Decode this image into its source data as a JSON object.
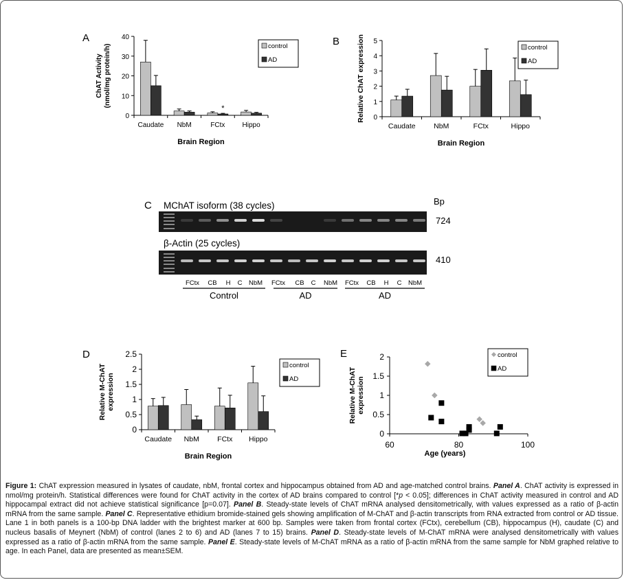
{
  "colors": {
    "control": "#c0c0c0",
    "ad": "#333333",
    "control_scatter": "#a8a8a8",
    "ad_scatter": "#000000",
    "gel_bg": "#1a1a1a",
    "band": "#f2f2f2"
  },
  "chart_data": [
    {
      "panel": "A",
      "type": "bar",
      "categories": [
        "Caudate",
        "NbM",
        "FCtx",
        "Hippo"
      ],
      "series": [
        {
          "name": "control",
          "values": [
            27,
            2.2,
            1.2,
            1.7
          ],
          "errors": [
            11,
            1,
            0.6,
            0.8
          ]
        },
        {
          "name": "AD",
          "values": [
            15,
            1.6,
            0.7,
            1.1
          ],
          "errors": [
            5.2,
            0.6,
            0.3,
            0.4
          ]
        }
      ],
      "ylim": [
        0,
        40
      ],
      "yticks": [
        0,
        10,
        20,
        30,
        40
      ],
      "ylabel_lines": [
        "ChAT Activity",
        "(nmol/mg protein/h)"
      ],
      "xlabel": "Brain Region",
      "annotation": "*",
      "legend": "top-right"
    },
    {
      "panel": "B",
      "type": "bar",
      "categories": [
        "Caudate",
        "NbM",
        "FCtx",
        "Hippo"
      ],
      "series": [
        {
          "name": "control",
          "values": [
            1.1,
            2.7,
            2.0,
            2.35
          ],
          "errors": [
            0.25,
            1.45,
            1.1,
            1.5
          ]
        },
        {
          "name": "AD",
          "values": [
            1.35,
            1.75,
            3.05,
            1.45
          ],
          "errors": [
            0.45,
            0.9,
            1.4,
            0.95
          ]
        }
      ],
      "ylim": [
        0,
        5
      ],
      "yticks": [
        0,
        1,
        2,
        3,
        4,
        5
      ],
      "ylabel_lines": [
        "Relative ChAT expression"
      ],
      "xlabel": "Brain Region",
      "legend": "top-right"
    },
    {
      "panel": "D",
      "type": "bar",
      "categories": [
        "Caudate",
        "NbM",
        "FCtx",
        "Hippo"
      ],
      "series": [
        {
          "name": "control",
          "values": [
            0.78,
            0.83,
            0.78,
            1.55
          ],
          "errors": [
            0.25,
            0.5,
            0.6,
            0.55
          ]
        },
        {
          "name": "AD",
          "values": [
            0.8,
            0.33,
            0.72,
            0.6
          ],
          "errors": [
            0.27,
            0.12,
            0.42,
            0.52
          ]
        }
      ],
      "ylim": [
        0,
        2.5
      ],
      "yticks": [
        "0",
        "0.5",
        "1",
        "1.5",
        "2",
        "2.5"
      ],
      "ylabel_lines": [
        "Relative M-ChAT",
        "expression"
      ],
      "xlabel": "Brain Region",
      "legend": "top-right"
    },
    {
      "panel": "E",
      "type": "scatter",
      "series": [
        {
          "name": "control",
          "points": [
            [
              71,
              1.82
            ],
            [
              73,
              1.0
            ],
            [
              86,
              0.38
            ],
            [
              87,
              0.28
            ]
          ]
        },
        {
          "name": "AD",
          "points": [
            [
              72,
              0.42
            ],
            [
              75,
              0.8
            ],
            [
              75,
              0.32
            ],
            [
              81,
              0.01
            ],
            [
              82,
              0.01
            ],
            [
              83,
              0.1
            ],
            [
              83,
              0.18
            ],
            [
              91,
              0.01
            ],
            [
              92,
              0.18
            ]
          ]
        }
      ],
      "xlim": [
        60,
        100
      ],
      "xticks": [
        60,
        80,
        100
      ],
      "ylim": [
        0,
        2
      ],
      "yticks": [
        "0",
        "0.5",
        "1",
        "1.5",
        "2"
      ],
      "ylabel_lines": [
        "Relative M-ChAT",
        "expression"
      ],
      "xlabel": "Age (years)",
      "legend": "top-right"
    }
  ],
  "panel_c": {
    "letter": "C",
    "gel1_title": "MChAT isoform (38 cycles)",
    "gel2_title": "β-Actin (25 cycles)",
    "bp_label": "Bp",
    "size1": "724",
    "size2": "410",
    "lane_labels": [
      "FCtx",
      "CB",
      "H",
      "C",
      "NbM",
      "FCtx",
      "CB",
      "C",
      "NbM",
      "FCtx",
      "CB",
      "H",
      "C",
      "NbM"
    ],
    "groups": [
      "Control",
      "AD",
      "AD"
    ],
    "gel1_bands": [
      0,
      0.15,
      0.3,
      0.55,
      0.85,
      0.9,
      0.2,
      0,
      0,
      0.15,
      0.4,
      0.5,
      0.5,
      0.5,
      0.45
    ],
    "gel2_bands": [
      0,
      0.75,
      0.8,
      0.8,
      0.85,
      0.85,
      0.8,
      0.75,
      0.8,
      0.85,
      0.8,
      0.85,
      0.85,
      0.8,
      0.8
    ]
  },
  "caption": {
    "fig_label": "Figure 1:",
    "intro": " ChAT expression measured in lysates of caudate, nbM, frontal cortex and hippocampus obtained from AD and age-matched control brains. ",
    "pA_label": "Panel A",
    "pA_text": ". ChAT activity is expressed in nmol/mg protein/h. Statistical differences were found for ChAT activity in the cortex of AD brains compared to control [*",
    "p_symbol": "p",
    "pA_text2": " < 0.05]; differences in ChAT activity measured in control and AD hippocampal extract did not achieve statistical significance [p=0.07]. ",
    "pB_label": "Panel B",
    "pB_text": ". Steady-state levels of ChAT mRNA analysed densitometrically, with values expressed as a ratio of β-actin mRNA from the same sample. ",
    "pC_label": "Panel C",
    "pC_text": ". Representative ethidium bromide-stained gels showing amplification of M-ChAT and β-actin transcripts from RNA extracted from control or AD tissue. Lane 1 in both panels is a 100-bp DNA ladder with the brightest marker at 600 bp. Samples were taken from frontal cortex (FCtx), cerebellum (CB), hippocampus (H), caudate (C) and nucleus basalis of Meynert (NbM) of control (lanes 2 to 6) and AD (lanes 7 to 15) brains. ",
    "pD_label": "Panel D",
    "pD_text": ". Steady-state levels of M-ChAT mRNA were analysed densitometrically with values expressed as a ratio of β-actin mRNA from the same sample. ",
    "pE_label": "Panel E",
    "pE_text": ". Steady-state levels of M-ChAT mRNA as a ratio of β-actin mRNA from the same sample for NbM graphed relative to age. In each Panel, data are presented as mean±SEM."
  }
}
